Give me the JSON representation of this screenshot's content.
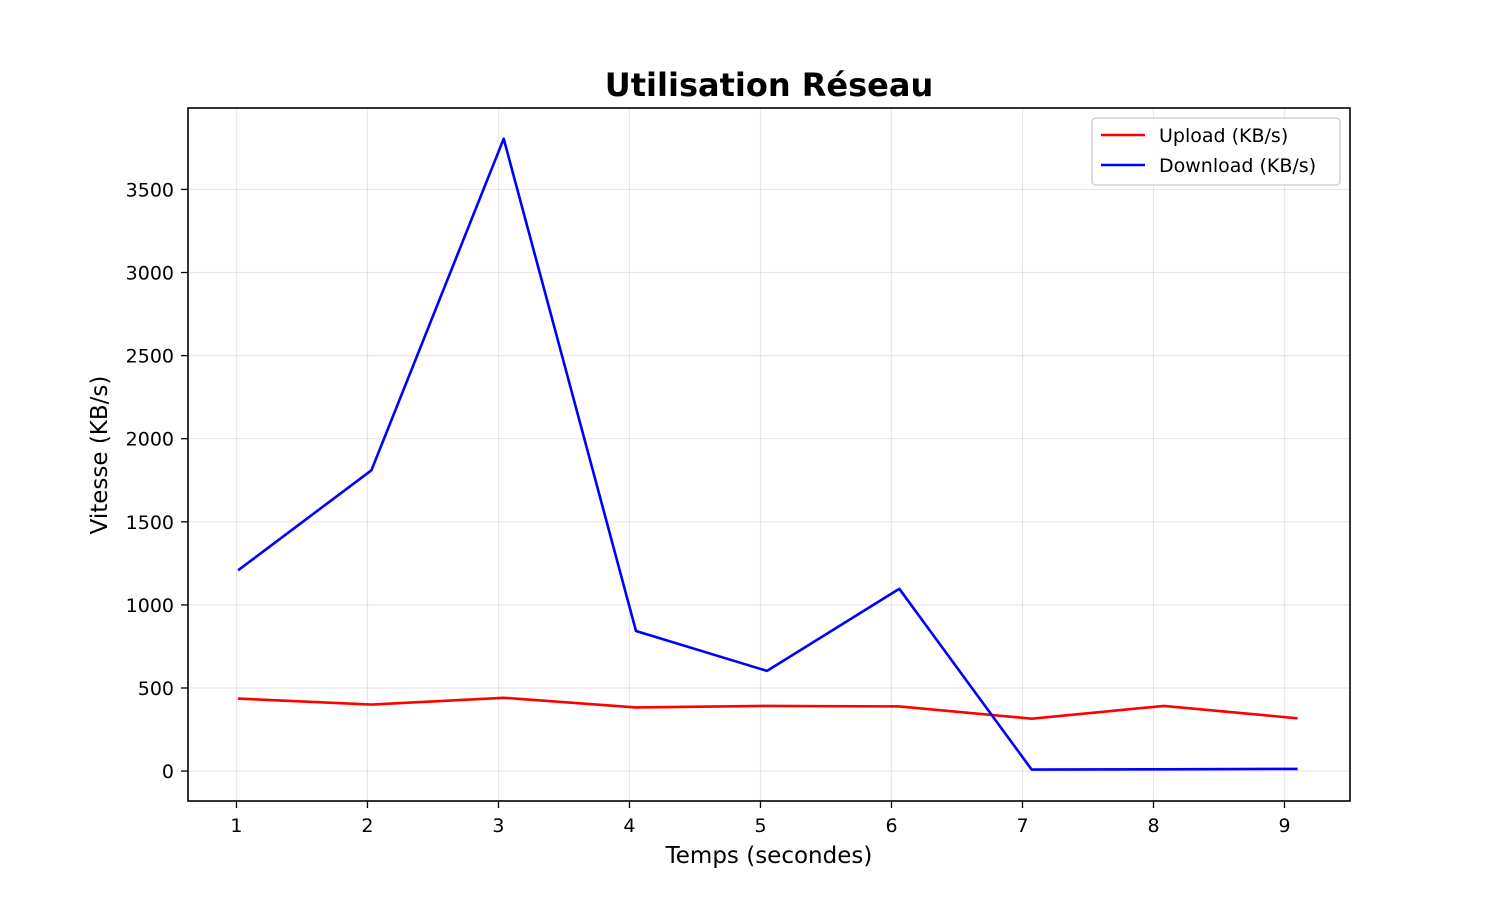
{
  "chart_data": {
    "type": "line",
    "title": "Utilisation Réseau",
    "xlabel": "Temps (secondes)",
    "ylabel": "Vitesse (KB/s)",
    "xlim": [
      0.63,
      9.5
    ],
    "ylim": [
      -180,
      3990
    ],
    "xticks": [
      1,
      2,
      3,
      4,
      5,
      6,
      7,
      8,
      9
    ],
    "yticks": [
      0,
      500,
      1000,
      1500,
      2000,
      2500,
      3000,
      3500
    ],
    "grid": true,
    "legend_position": "top-right",
    "series": [
      {
        "name": "Upload (KB/s)",
        "color": "#ff0000",
        "points": [
          [
            1.02,
            436
          ],
          [
            2.03,
            400
          ],
          [
            3.04,
            441
          ],
          [
            4.05,
            383
          ],
          [
            5.05,
            392
          ],
          [
            6.06,
            389
          ],
          [
            7.07,
            315
          ],
          [
            8.08,
            392
          ],
          [
            9.09,
            318
          ]
        ]
      },
      {
        "name": "Download (KB/s)",
        "color": "#0000ff",
        "points": [
          [
            1.02,
            1213
          ],
          [
            2.03,
            1810
          ],
          [
            3.04,
            3805
          ],
          [
            4.05,
            843
          ],
          [
            5.05,
            603
          ],
          [
            6.06,
            1097
          ],
          [
            7.07,
            9
          ],
          [
            8.08,
            11
          ],
          [
            9.09,
            13
          ]
        ]
      }
    ]
  }
}
